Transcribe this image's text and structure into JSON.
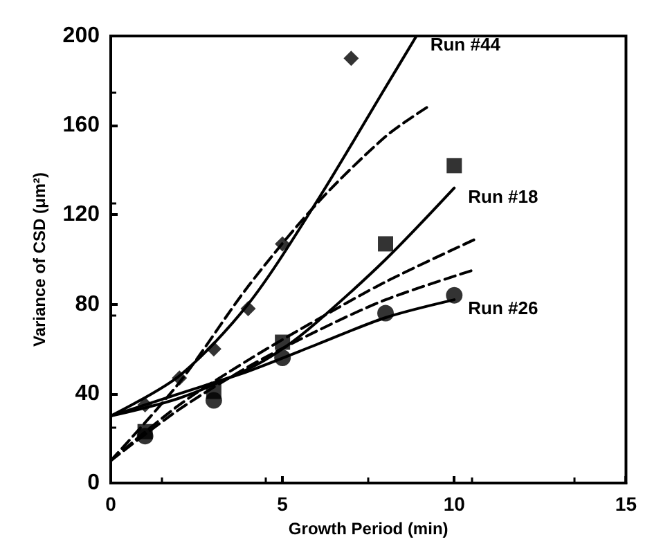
{
  "chart_data": {
    "type": "scatter",
    "xlabel": "Growth Period (min)",
    "ylabel": "Variance of CSD (μm²)",
    "xlim": [
      0,
      15
    ],
    "xticks": [
      0,
      5,
      10,
      15
    ],
    "ylim": [
      0,
      200
    ],
    "yticks": [
      0,
      40,
      80,
      120,
      160,
      200
    ],
    "grid": false,
    "legend": false,
    "series": [
      {
        "color": "#000000",
        "marker": "diamond",
        "x": [
          1,
          2,
          3,
          4,
          5,
          7
        ],
        "values": [
          35,
          47,
          60,
          78,
          107,
          190
        ]
      },
      {
        "color": "#000000",
        "marker": "square",
        "x": [
          1,
          3,
          5,
          8,
          10
        ],
        "values": [
          23,
          41,
          63,
          107,
          142
        ]
      },
      {
        "color": "#000000",
        "marker": "circle",
        "x": [
          1,
          3,
          5,
          8,
          10
        ],
        "values": [
          21,
          37,
          56,
          76,
          84
        ]
      },
      {
        "type": "line",
        "name": "Run #44",
        "color": "#000000",
        "marker": "none",
        "line_style": "solid",
        "x": [
          0,
          2,
          4,
          6,
          8,
          8.9
        ],
        "values": [
          30,
          48,
          80,
          126,
          177,
          200
        ]
      },
      {
        "type": "line",
        "name": "Run #18",
        "color": "#000000",
        "marker": "none",
        "line_style": "solid",
        "x": [
          0,
          2,
          4,
          5,
          6,
          8,
          10
        ],
        "values": [
          30,
          38,
          51,
          60,
          72,
          100,
          132
        ]
      },
      {
        "type": "line",
        "name": "Run #26",
        "color": "#000000",
        "marker": "none",
        "line_style": "solid",
        "x": [
          0,
          2,
          4,
          6,
          8,
          10
        ],
        "values": [
          30,
          40,
          50,
          62,
          74,
          82
        ]
      },
      {
        "type": "line",
        "color": "#000000",
        "marker": "none",
        "line_style": "dashed",
        "x": [
          0,
          2,
          4,
          6,
          8,
          9.2
        ],
        "values": [
          10,
          45,
          88,
          125,
          155,
          168
        ]
      },
      {
        "type": "line",
        "color": "#000000",
        "marker": "none",
        "line_style": "dashed",
        "x": [
          0,
          2,
          4,
          6,
          8,
          10.6
        ],
        "values": [
          10,
          35,
          55,
          73,
          90,
          109
        ]
      },
      {
        "type": "line",
        "color": "#000000",
        "marker": "none",
        "line_style": "dashed",
        "x": [
          0,
          2,
          4,
          6,
          8,
          10.5
        ],
        "values": [
          10,
          33,
          52,
          68,
          82,
          95
        ]
      }
    ]
  }
}
